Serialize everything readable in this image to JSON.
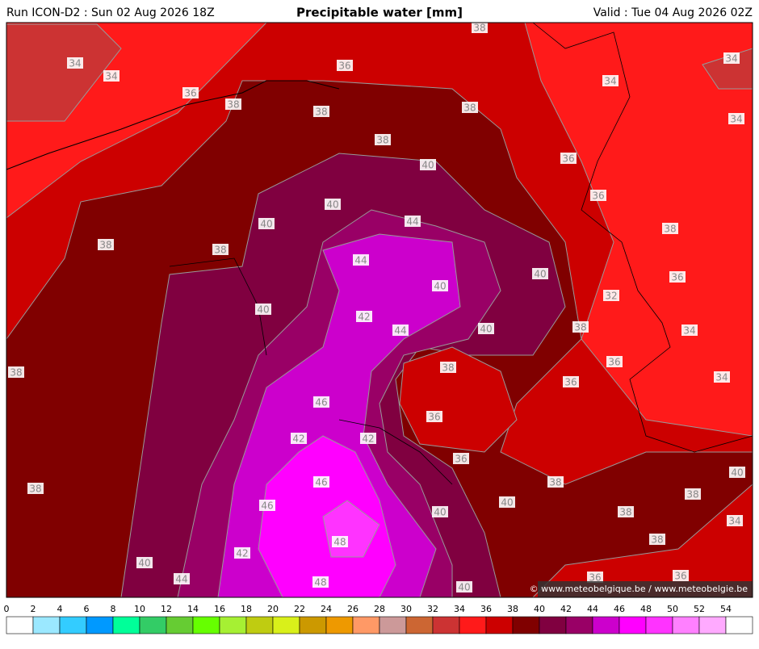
{
  "header": {
    "run": "Run ICON-D2 : Sun 02 Aug 2026 18Z",
    "title": "Precipitable water [mm]",
    "valid": "Valid : Tue 04 Aug 2026 02Z"
  },
  "contour_labels": [
    34,
    34,
    36,
    38,
    38,
    36,
    38,
    38,
    38,
    40,
    40,
    40,
    44,
    38,
    38,
    44,
    40,
    40,
    40,
    42,
    44,
    40,
    38,
    38,
    46,
    36,
    42,
    42,
    36,
    38,
    46,
    46,
    40,
    40,
    48,
    42,
    40,
    44,
    48,
    40,
    36,
    36,
    34,
    34,
    34,
    36,
    36,
    38,
    36,
    32,
    34,
    38,
    36,
    36,
    34,
    38,
    38,
    38,
    40,
    34,
    38
  ],
  "copyright": "© www.meteobelgique.be / www.meteobelgie.be",
  "colorbar": {
    "ticks": [
      0,
      2,
      4,
      6,
      8,
      10,
      12,
      14,
      16,
      18,
      20,
      22,
      24,
      26,
      28,
      30,
      32,
      34,
      36,
      38,
      40,
      42,
      44,
      46,
      48,
      50,
      52,
      54
    ],
    "colors": [
      "#ffffff",
      "#9be8ff",
      "#33ccff",
      "#0099ff",
      "#00ff99",
      "#33cc66",
      "#66cc33",
      "#66ff00",
      "#a6f033",
      "#bfcc11",
      "#d9f01a",
      "#cc9900",
      "#ee9900",
      "#ff9966",
      "#cc9999",
      "#cc6633",
      "#cc3333",
      "#ff1a1a",
      "#cc0000",
      "#800000",
      "#800040",
      "#990066",
      "#cc00cc",
      "#ff00ff",
      "#ff33ff",
      "#ff80ff",
      "#ffaaff",
      "#ffffff"
    ]
  }
}
